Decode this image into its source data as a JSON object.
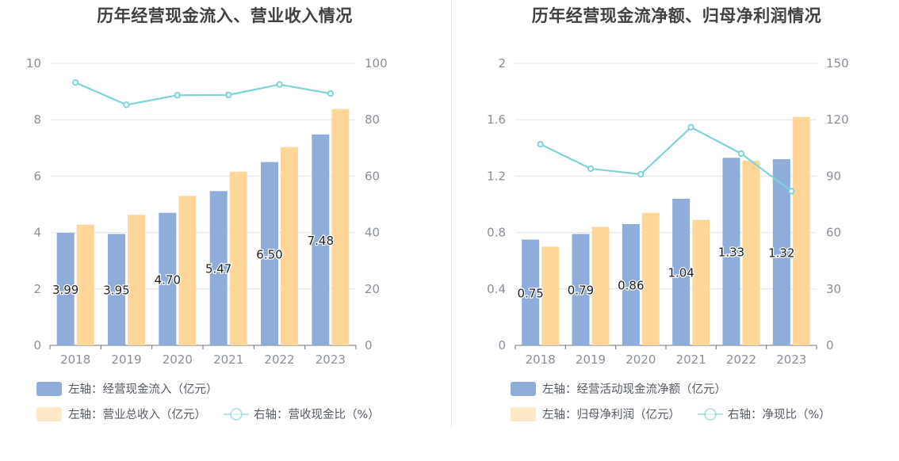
{
  "colors": {
    "bar_left": "#8eaddb",
    "bar_right": "#ffd899",
    "bar_right_legend": "#fde9c8",
    "bar_left_legend": "#8eaddb",
    "line": "#7dd3d8",
    "axis_text": "#8a8f99",
    "grid": "#e3e6f0",
    "divider": "#e6e8ee"
  },
  "chart_data": [
    {
      "type": "bar",
      "title": "历年经营现金流入、营业收入情况",
      "categories": [
        "2018",
        "2019",
        "2020",
        "2021",
        "2022",
        "2023"
      ],
      "left_axis": {
        "ylim": [
          0,
          10
        ],
        "ticks": [
          "0",
          "2",
          "4",
          "6",
          "8",
          "10"
        ]
      },
      "right_axis": {
        "ylim": [
          0,
          100
        ],
        "ticks": [
          "0",
          "20",
          "40",
          "60",
          "80",
          "100"
        ]
      },
      "grid": true,
      "legend_position": "bottom-left",
      "series": [
        {
          "name": "左轴：经营现金流入（亿元）",
          "axis": "left",
          "type": "bar",
          "values": [
            3.99,
            3.95,
            4.7,
            5.47,
            6.5,
            7.48
          ],
          "labels": [
            "3.99",
            "3.95",
            "4.70",
            "5.47",
            "6.50",
            "7.48"
          ]
        },
        {
          "name": "左轴：营业总收入（亿元）",
          "axis": "left",
          "type": "bar",
          "values": [
            4.28,
            4.63,
            5.3,
            6.16,
            7.03,
            8.38
          ]
        },
        {
          "name": "右轴：营收现金比（%）",
          "axis": "right",
          "type": "line",
          "values": [
            93.2,
            85.3,
            88.7,
            88.8,
            92.5,
            89.3
          ]
        }
      ]
    },
    {
      "type": "bar",
      "title": "历年经营现金流净额、归母净利润情况",
      "categories": [
        "2018",
        "2019",
        "2020",
        "2021",
        "2022",
        "2023"
      ],
      "left_axis": {
        "ylim": [
          0,
          2
        ],
        "ticks": [
          "0",
          "0.4",
          "0.8",
          "1.2",
          "1.6",
          "2"
        ]
      },
      "right_axis": {
        "ylim": [
          0,
          150
        ],
        "ticks": [
          "0",
          "30",
          "60",
          "90",
          "120",
          "150"
        ]
      },
      "grid": true,
      "legend_position": "bottom-left",
      "series": [
        {
          "name": "左轴：经营活动现金流净额（亿元）",
          "axis": "left",
          "type": "bar",
          "values": [
            0.75,
            0.79,
            0.86,
            1.04,
            1.33,
            1.32
          ],
          "labels": [
            "0.75",
            "0.79",
            "0.86",
            "1.04",
            "1.33",
            "1.32"
          ]
        },
        {
          "name": "左轴：归母净利润（亿元）",
          "axis": "left",
          "type": "bar",
          "values": [
            0.7,
            0.84,
            0.94,
            0.89,
            1.31,
            1.62
          ]
        },
        {
          "name": "右轴：净现比（%）",
          "axis": "right",
          "type": "line",
          "values": [
            107,
            94,
            91,
            116,
            102,
            82
          ]
        }
      ]
    }
  ]
}
